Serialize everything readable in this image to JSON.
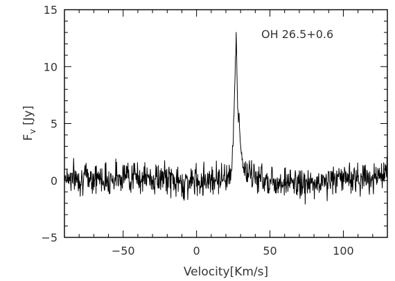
{
  "chart_data": {
    "type": "line",
    "title": "",
    "annotation": "OH 26.5+0.6",
    "xlabel": "Velocity[Km/s]",
    "ylabel_main": "F",
    "ylabel_sub": "v",
    "ylabel_unit": " [Jy]",
    "xlim": [
      -90,
      130
    ],
    "ylim": [
      -5,
      15
    ],
    "xticks": [
      -50,
      0,
      50,
      100
    ],
    "xtick_labels": [
      "−50",
      "0",
      "50",
      "100"
    ],
    "yticks": [
      -5,
      0,
      5,
      10,
      15
    ],
    "ytick_labels": [
      "−5",
      "0",
      "5",
      "10",
      "15"
    ],
    "grid": false,
    "line_color": "#000000",
    "series": [
      {
        "x": [
          -90,
          -80,
          -70,
          -60,
          -50,
          -40,
          -30,
          -20,
          -10,
          0,
          10,
          20,
          23,
          24,
          25,
          26,
          27,
          28,
          29,
          30,
          31,
          32,
          33,
          35,
          40,
          50,
          60,
          70,
          80,
          90,
          100,
          110,
          120,
          130
        ],
        "values": [
          0.4,
          0.2,
          0.3,
          0.1,
          0.5,
          0.3,
          0.1,
          0.2,
          -0.3,
          0.0,
          0.2,
          0.3,
          0.6,
          1.5,
          4.0,
          8.0,
          12.8,
          6.0,
          5.5,
          3.0,
          1.8,
          1.2,
          0.9,
          0.5,
          0.3,
          0.0,
          -0.1,
          -0.3,
          -0.4,
          0.0,
          0.3,
          0.2,
          0.3,
          0.3
        ]
      }
    ]
  }
}
